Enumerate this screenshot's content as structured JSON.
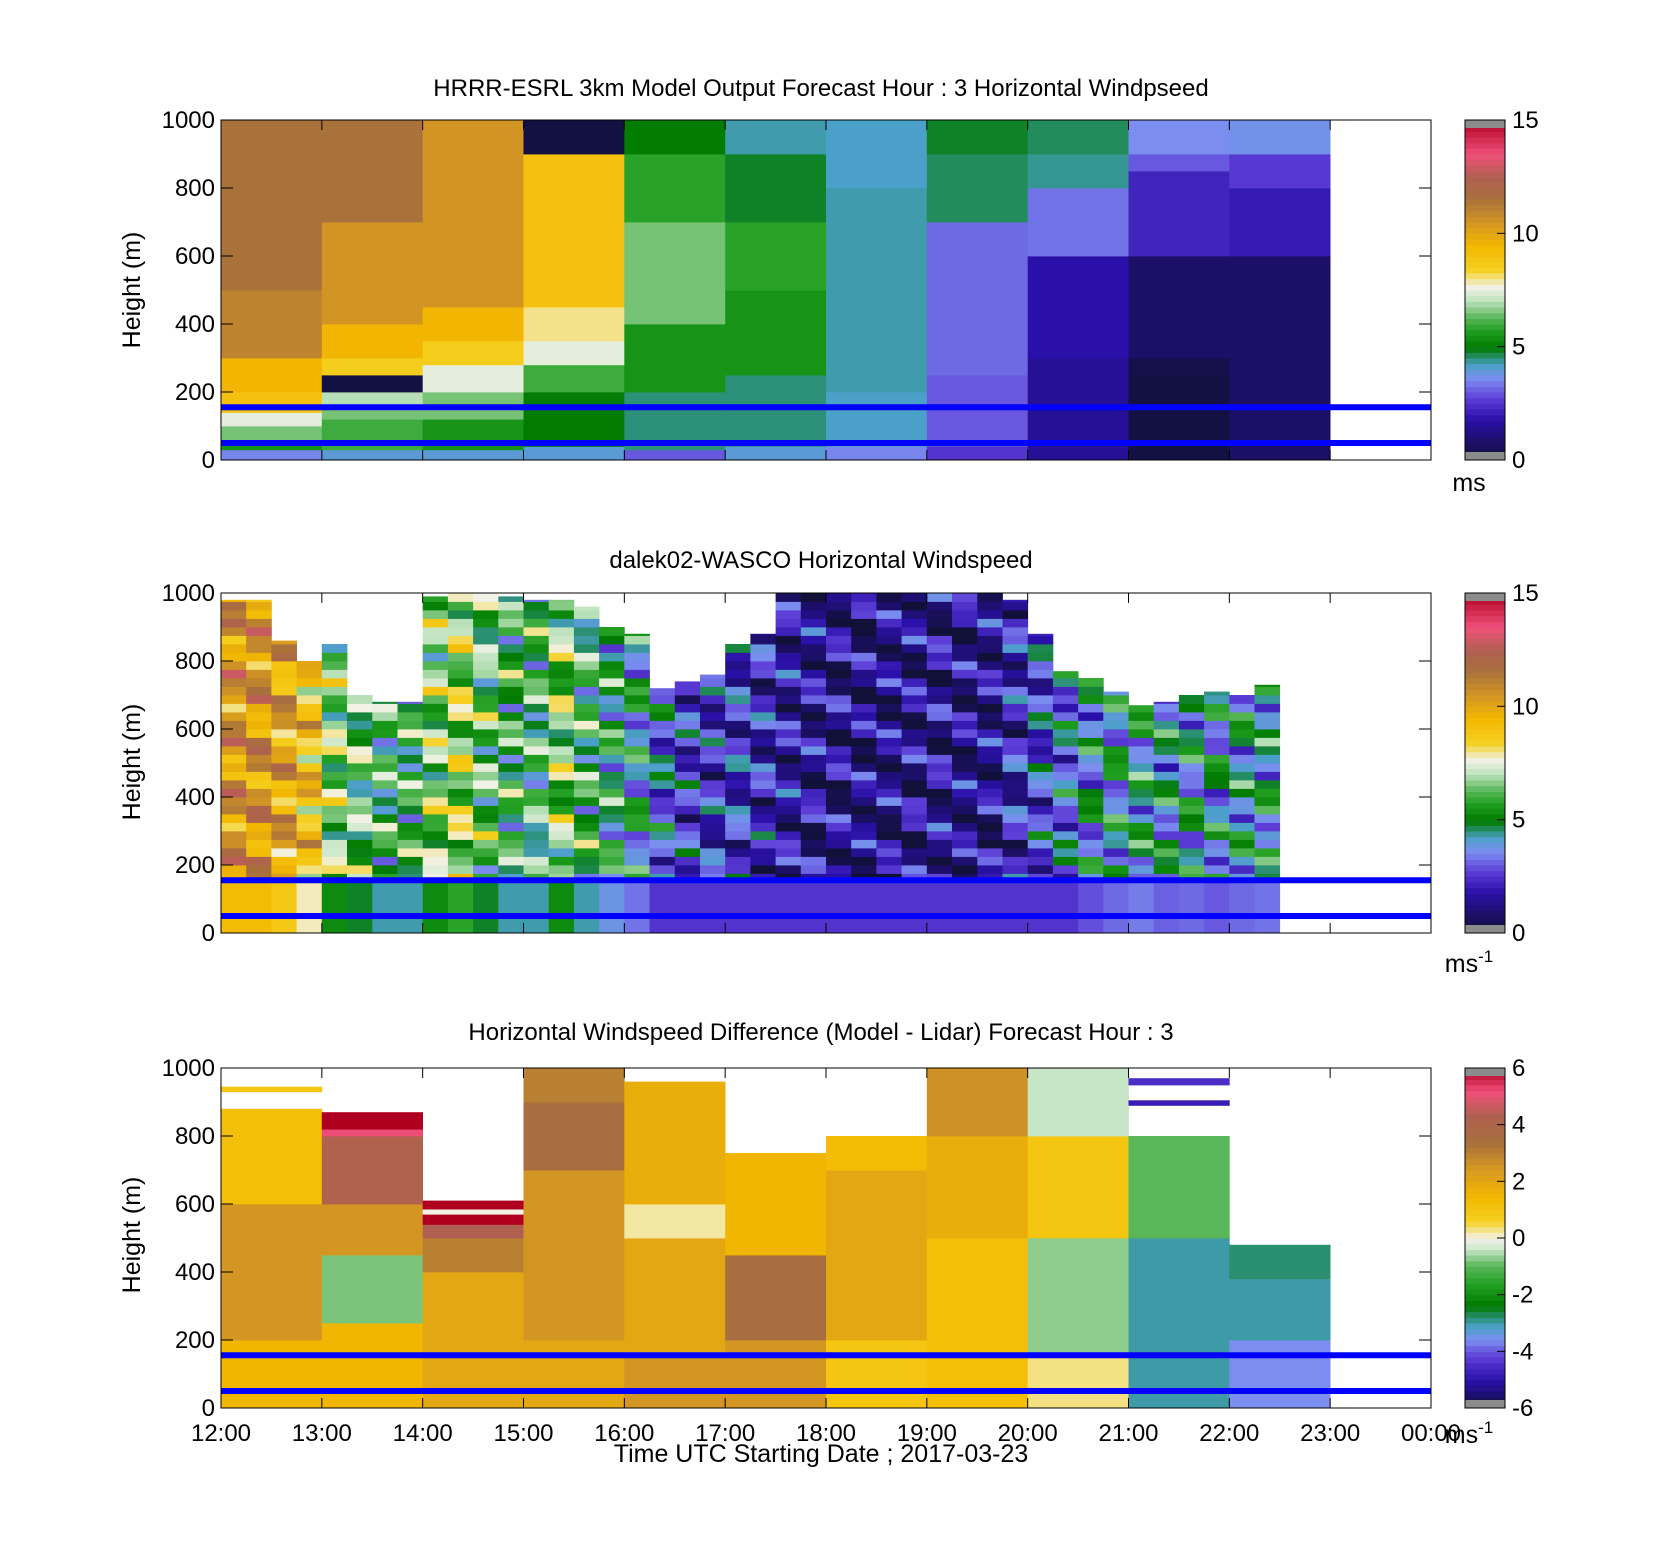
{
  "figure": {
    "xlabel": "Time UTC  Starting Date ; 2017-03-23",
    "x_ticks": [
      "12:00",
      "13:00",
      "14:00",
      "15:00",
      "16:00",
      "17:00",
      "18:00",
      "19:00",
      "20:00",
      "21:00",
      "22:00",
      "23:00",
      "00:00"
    ],
    "overlay_line_color": "#0000ff",
    "overlay_line_heights_m": [
      155,
      50
    ]
  },
  "chart_data": [
    {
      "type": "heatmap",
      "title": "HRRR-ESRL 3km Model Output   Forecast Hour : 3 Horizontal Windpseed",
      "xlabel": "",
      "ylabel": "Height (m)",
      "ylim": [
        0,
        1000
      ],
      "y_ticks": [
        "0",
        "200",
        "400",
        "600",
        "800",
        "1000"
      ],
      "colorbar": {
        "ticks": [
          "0",
          "5",
          "10",
          "15"
        ],
        "range": [
          0,
          15
        ],
        "unit": "ms",
        "unit_sup": ""
      },
      "x_hours": [
        12,
        13,
        14,
        15,
        16,
        17,
        18,
        19,
        20,
        21,
        22
      ],
      "columns": [
        [
          [
            0,
            30,
            3.5
          ],
          [
            30,
            60,
            5.5
          ],
          [
            60,
            100,
            6.5
          ],
          [
            100,
            140,
            7.5
          ],
          [
            140,
            200,
            9
          ],
          [
            200,
            300,
            9.5
          ],
          [
            300,
            500,
            11
          ],
          [
            500,
            1000,
            11.5
          ]
        ],
        [
          [
            0,
            30,
            4
          ],
          [
            30,
            120,
            6
          ],
          [
            120,
            150,
            6.5
          ],
          [
            150,
            200,
            7
          ],
          [
            200,
            250,
            0.2
          ],
          [
            250,
            300,
            8.5
          ],
          [
            300,
            400,
            9.5
          ],
          [
            400,
            700,
            10.5
          ],
          [
            700,
            1000,
            11.5
          ]
        ],
        [
          [
            0,
            30,
            4
          ],
          [
            30,
            120,
            5.5
          ],
          [
            120,
            200,
            6.5
          ],
          [
            200,
            280,
            7.5
          ],
          [
            280,
            350,
            8.5
          ],
          [
            350,
            450,
            9.5
          ],
          [
            450,
            1000,
            10.5
          ]
        ],
        [
          [
            0,
            40,
            4
          ],
          [
            40,
            200,
            5
          ],
          [
            200,
            280,
            6
          ],
          [
            280,
            350,
            7.5
          ],
          [
            350,
            450,
            8
          ],
          [
            450,
            900,
            9
          ],
          [
            900,
            1000,
            0.2
          ]
        ],
        [
          [
            0,
            30,
            3
          ],
          [
            30,
            200,
            4.5
          ],
          [
            200,
            400,
            5.5
          ],
          [
            400,
            700,
            6.5
          ],
          [
            700,
            900,
            5.8
          ],
          [
            900,
            1000,
            5
          ]
        ],
        [
          [
            0,
            40,
            4
          ],
          [
            40,
            250,
            4.5
          ],
          [
            250,
            500,
            5.5
          ],
          [
            500,
            700,
            5.8
          ],
          [
            700,
            900,
            4.8
          ],
          [
            900,
            1000,
            4.3
          ]
        ],
        [
          [
            0,
            40,
            3.5
          ],
          [
            40,
            200,
            4.2
          ],
          [
            200,
            800,
            4.3
          ],
          [
            800,
            1000,
            4.2
          ]
        ],
        [
          [
            0,
            40,
            2.5
          ],
          [
            40,
            250,
            3
          ],
          [
            250,
            700,
            3.2
          ],
          [
            700,
            900,
            4.6
          ],
          [
            900,
            1000,
            4.8
          ]
        ],
        [
          [
            0,
            300,
            1.5
          ],
          [
            300,
            600,
            1.8
          ],
          [
            600,
            800,
            3.3
          ],
          [
            800,
            900,
            4.4
          ],
          [
            900,
            1000,
            4.6
          ]
        ],
        [
          [
            0,
            250,
            0.2
          ],
          [
            250,
            300,
            0.3
          ],
          [
            300,
            600,
            0.8
          ],
          [
            600,
            850,
            2.2
          ],
          [
            850,
            900,
            3.0
          ],
          [
            900,
            1000,
            3.6
          ]
        ],
        [
          [
            0,
            600,
            0.8
          ],
          [
            600,
            800,
            2.0
          ],
          [
            800,
            900,
            2.6
          ],
          [
            900,
            1000,
            3.7
          ]
        ]
      ]
    },
    {
      "type": "heatmap",
      "title": "dalek02-WASCO  Horizontal Windspeed",
      "xlabel": "",
      "ylabel": "Height (m)",
      "ylim": [
        0,
        1000
      ],
      "y_ticks": [
        "0",
        "200",
        "400",
        "600",
        "800",
        "1000"
      ],
      "colorbar": {
        "ticks": [
          "0",
          "5",
          "10",
          "15"
        ],
        "range": [
          0,
          15
        ],
        "unit": "ms",
        "unit_sup": "-1"
      },
      "bin_minutes": 15,
      "profile_tops_m": [
        980,
        980,
        860,
        800,
        850,
        700,
        680,
        680,
        990,
        1000,
        1000,
        990,
        980,
        980,
        960,
        900,
        880,
        720,
        740,
        760,
        850,
        880,
        1000,
        1000,
        1000,
        1000,
        1000,
        1000,
        1000,
        1000,
        1000,
        980,
        880,
        770,
        750,
        710,
        670,
        680,
        700,
        710,
        700,
        730
      ],
      "profile_center_speed_ms": [
        10.5,
        10.5,
        10,
        9,
        6.5,
        6,
        5.5,
        5.5,
        6.5,
        7,
        6,
        5.5,
        5.5,
        6.5,
        5.5,
        5,
        4.5,
        3.5,
        2.8,
        2.5,
        2.6,
        2.2,
        1.7,
        1.5,
        1.4,
        1.3,
        1.3,
        1.4,
        1.5,
        1.3,
        1.4,
        2.2,
        3,
        3.6,
        4.1,
        4.4,
        4.6,
        4.3,
        4.4,
        4.2,
        4.4,
        4.5
      ]
    },
    {
      "type": "heatmap",
      "title": "Horizontal Windspeed Difference (Model - Lidar) Forecast Hour : 3",
      "xlabel": "Time UTC  Starting Date ; 2017-03-23",
      "ylabel": "Height (m)",
      "ylim": [
        0,
        1000
      ],
      "y_ticks": [
        "0",
        "200",
        "400",
        "600",
        "800",
        "1000"
      ],
      "colorbar": {
        "ticks": [
          "-6",
          "-4",
          "-2",
          "0",
          "2",
          "4",
          "6"
        ],
        "range": [
          -6,
          6
        ],
        "unit": "ms",
        "unit_sup": "-1"
      },
      "x_hours": [
        12,
        13,
        14,
        15,
        16,
        17,
        18,
        19,
        20,
        21,
        22
      ],
      "columns": [
        [
          [
            0,
            200,
            1.5
          ],
          [
            200,
            600,
            2.5
          ],
          [
            600,
            880,
            1.2
          ],
          [
            930,
            945,
            1.0
          ]
        ],
        [
          [
            0,
            250,
            1.5
          ],
          [
            250,
            450,
            -0.8
          ],
          [
            450,
            600,
            2.5
          ],
          [
            600,
            800,
            4.2
          ],
          [
            800,
            820,
            5.2
          ],
          [
            820,
            870,
            6.2
          ]
        ],
        [
          [
            0,
            400,
            2.0
          ],
          [
            400,
            500,
            3.0
          ],
          [
            500,
            540,
            4.3
          ],
          [
            540,
            570,
            6.2
          ],
          [
            570,
            585,
            0.0
          ],
          [
            585,
            610,
            6.2
          ]
        ],
        [
          [
            0,
            200,
            2.0
          ],
          [
            200,
            700,
            2.5
          ],
          [
            700,
            900,
            3.5
          ],
          [
            900,
            1000,
            3.0
          ]
        ],
        [
          [
            0,
            150,
            2.5
          ],
          [
            150,
            500,
            2.0
          ],
          [
            500,
            600,
            0.2
          ],
          [
            600,
            960,
            1.8
          ]
        ],
        [
          [
            0,
            200,
            2.5
          ],
          [
            200,
            450,
            3.5
          ],
          [
            450,
            750,
            1.5
          ]
        ],
        [
          [
            0,
            200,
            1.0
          ],
          [
            200,
            700,
            2.0
          ],
          [
            700,
            800,
            1.3
          ]
        ],
        [
          [
            0,
            500,
            1.2
          ],
          [
            500,
            800,
            1.8
          ],
          [
            800,
            1000,
            2.6
          ]
        ],
        [
          [
            0,
            150,
            0.3
          ],
          [
            150,
            500,
            -0.7
          ],
          [
            500,
            800,
            1.0
          ],
          [
            800,
            1000,
            -0.4
          ]
        ],
        [
          [
            0,
            500,
            -3.0
          ],
          [
            500,
            800,
            -1.0
          ],
          [
            890,
            905,
            -4.8
          ],
          [
            950,
            970,
            -4.5
          ]
        ],
        [
          [
            0,
            200,
            -3.6
          ],
          [
            200,
            380,
            -3.0
          ],
          [
            380,
            480,
            -2.8
          ]
        ]
      ]
    }
  ]
}
